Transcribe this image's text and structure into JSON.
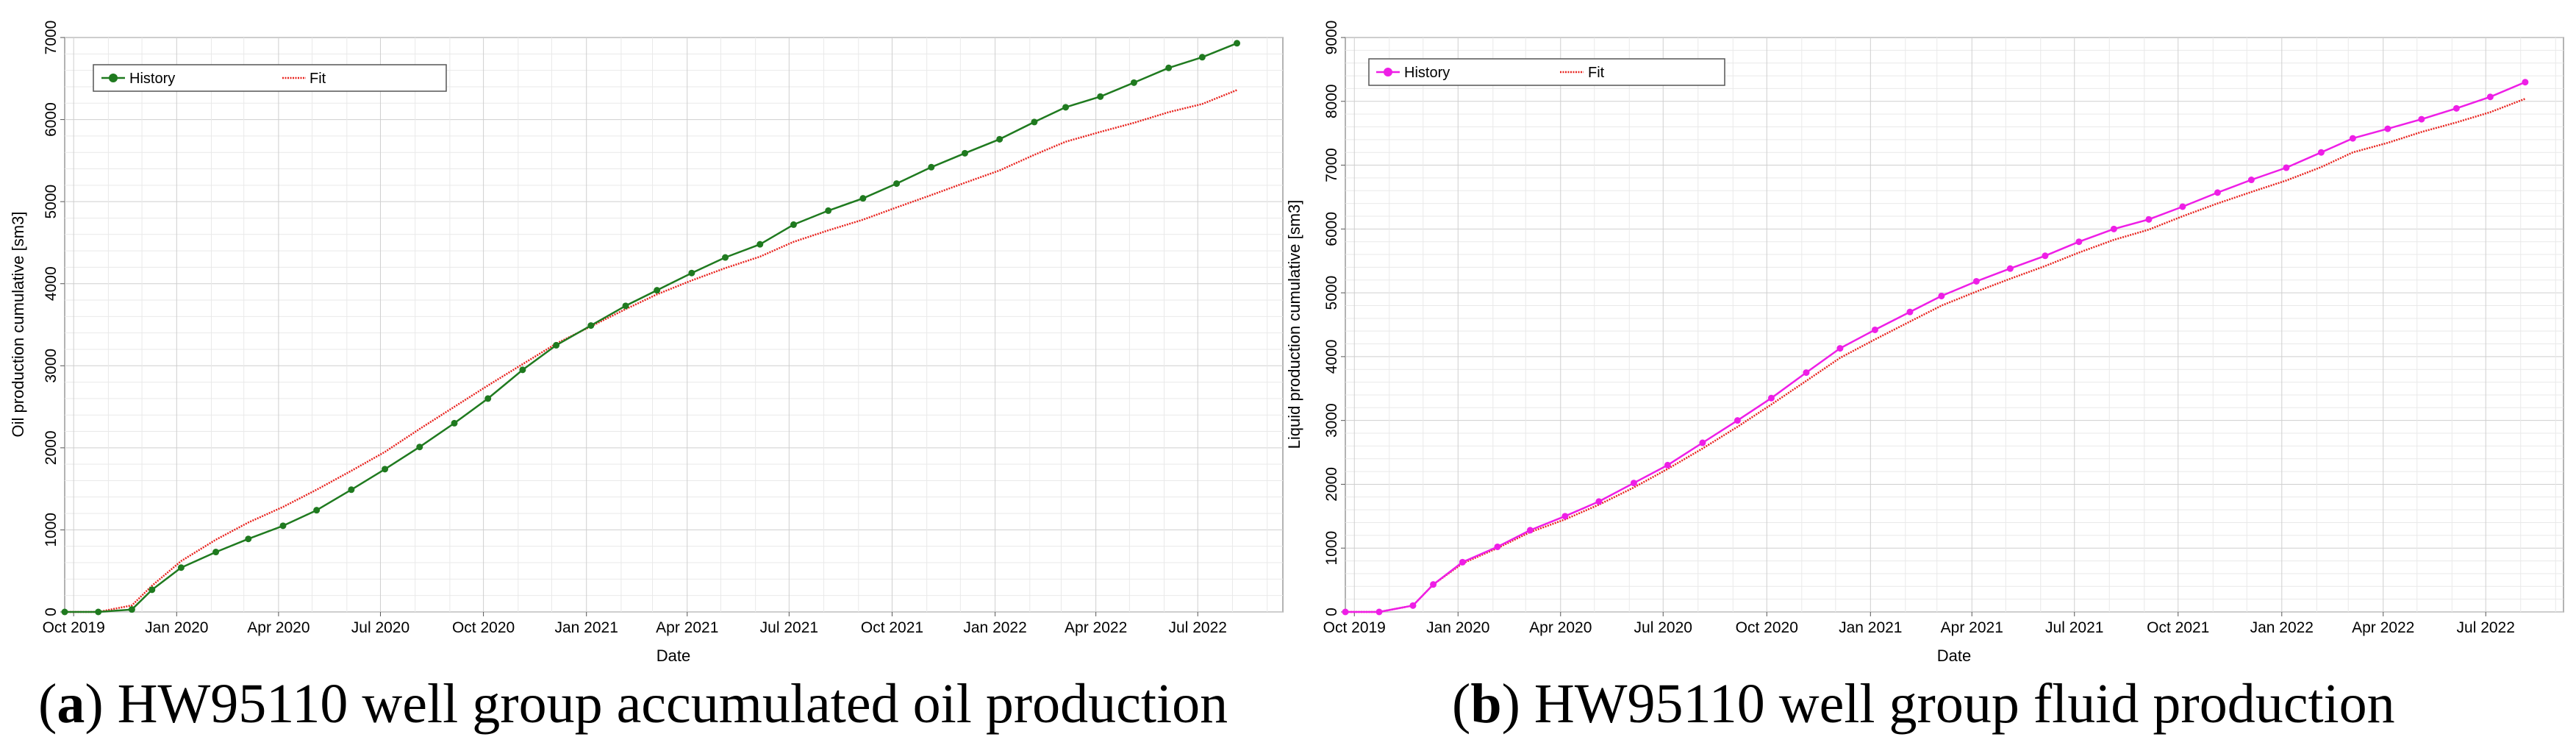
{
  "chart_data": [
    {
      "type": "line",
      "caption_letter": "a",
      "caption_text": "HW95110 well group accumulated oil production",
      "xlabel": "Date",
      "ylabel": "Oil production cumulative [sm3]",
      "xlim": [
        "2019-09-23",
        "2022-09-15"
      ],
      "ylim": [
        0,
        7000
      ],
      "y_ticks": [
        0,
        1000,
        2000,
        3000,
        4000,
        5000,
        6000,
        7000
      ],
      "x_ticks": [
        {
          "date": "2019-10-01",
          "label": "Oct 2019"
        },
        {
          "date": "2020-01-01",
          "label": "Jan 2020"
        },
        {
          "date": "2020-04-01",
          "label": "Apr 2020"
        },
        {
          "date": "2020-07-01",
          "label": "Jul 2020"
        },
        {
          "date": "2020-10-01",
          "label": "Oct 2020"
        },
        {
          "date": "2021-01-01",
          "label": "Jan 2021"
        },
        {
          "date": "2021-04-01",
          "label": "Apr 2021"
        },
        {
          "date": "2021-07-01",
          "label": "Jul 2021"
        },
        {
          "date": "2021-10-01",
          "label": "Oct 2021"
        },
        {
          "date": "2022-01-01",
          "label": "Jan 2022"
        },
        {
          "date": "2022-04-01",
          "label": "Apr 2022"
        },
        {
          "date": "2022-07-01",
          "label": "Jul 2022"
        }
      ],
      "grid": true,
      "legend_position": "top-left",
      "series": [
        {
          "name": "History",
          "color": "#1f7a1f",
          "markers": true,
          "points": [
            [
              "2019-09-23",
              0
            ],
            [
              "2019-10-23",
              0
            ],
            [
              "2019-11-22",
              30
            ],
            [
              "2019-12-10",
              270
            ],
            [
              "2020-01-05",
              540
            ],
            [
              "2020-02-05",
              730
            ],
            [
              "2020-03-05",
              890
            ],
            [
              "2020-04-05",
              1050
            ],
            [
              "2020-05-05",
              1240
            ],
            [
              "2020-06-05",
              1490
            ],
            [
              "2020-07-05",
              1740
            ],
            [
              "2020-08-05",
              2010
            ],
            [
              "2020-09-05",
              2300
            ],
            [
              "2020-10-05",
              2600
            ],
            [
              "2020-11-05",
              2950
            ],
            [
              "2020-12-05",
              3250
            ],
            [
              "2021-01-05",
              3490
            ],
            [
              "2021-02-05",
              3730
            ],
            [
              "2021-03-05",
              3920
            ],
            [
              "2021-04-05",
              4130
            ],
            [
              "2021-05-05",
              4320
            ],
            [
              "2021-06-05",
              4480
            ],
            [
              "2021-07-05",
              4720
            ],
            [
              "2021-08-05",
              4890
            ],
            [
              "2021-09-05",
              5040
            ],
            [
              "2021-10-05",
              5220
            ],
            [
              "2021-11-05",
              5420
            ],
            [
              "2021-12-05",
              5590
            ],
            [
              "2022-01-05",
              5760
            ],
            [
              "2022-02-05",
              5970
            ],
            [
              "2022-03-05",
              6150
            ],
            [
              "2022-04-05",
              6280
            ],
            [
              "2022-05-05",
              6450
            ],
            [
              "2022-06-05",
              6630
            ],
            [
              "2022-07-05",
              6760
            ],
            [
              "2022-08-05",
              6930
            ]
          ]
        },
        {
          "name": "Fit",
          "color": "#e8231e",
          "markers": false,
          "points": [
            [
              "2019-09-23",
              0
            ],
            [
              "2019-10-23",
              0
            ],
            [
              "2019-11-22",
              80
            ],
            [
              "2019-12-10",
              320
            ],
            [
              "2020-01-05",
              620
            ],
            [
              "2020-02-05",
              880
            ],
            [
              "2020-03-05",
              1090
            ],
            [
              "2020-04-05",
              1280
            ],
            [
              "2020-05-05",
              1490
            ],
            [
              "2020-06-05",
              1720
            ],
            [
              "2020-07-05",
              1950
            ],
            [
              "2020-08-05",
              2230
            ],
            [
              "2020-09-05",
              2500
            ],
            [
              "2020-10-05",
              2760
            ],
            [
              "2020-11-05",
              3020
            ],
            [
              "2020-12-05",
              3270
            ],
            [
              "2021-01-05",
              3480
            ],
            [
              "2021-02-05",
              3690
            ],
            [
              "2021-03-05",
              3870
            ],
            [
              "2021-04-05",
              4040
            ],
            [
              "2021-05-05",
              4190
            ],
            [
              "2021-06-05",
              4330
            ],
            [
              "2021-07-05",
              4510
            ],
            [
              "2021-08-05",
              4650
            ],
            [
              "2021-09-05",
              4780
            ],
            [
              "2021-10-05",
              4930
            ],
            [
              "2021-11-05",
              5080
            ],
            [
              "2021-12-05",
              5230
            ],
            [
              "2022-01-05",
              5380
            ],
            [
              "2022-02-05",
              5570
            ],
            [
              "2022-03-05",
              5730
            ],
            [
              "2022-04-05",
              5850
            ],
            [
              "2022-05-05",
              5960
            ],
            [
              "2022-06-05",
              6090
            ],
            [
              "2022-07-05",
              6190
            ],
            [
              "2022-08-05",
              6360
            ]
          ]
        }
      ]
    },
    {
      "type": "line",
      "caption_letter": "b",
      "caption_text": "HW95110 well group fluid production",
      "xlabel": "Date",
      "ylabel": "Liquid production cumulative [sm3]",
      "xlim": [
        "2019-09-23",
        "2022-09-08"
      ],
      "ylim": [
        0,
        9000
      ],
      "y_ticks": [
        0,
        1000,
        2000,
        3000,
        4000,
        5000,
        6000,
        7000,
        8000,
        9000
      ],
      "x_ticks": [
        {
          "date": "2019-10-01",
          "label": "Oct 2019"
        },
        {
          "date": "2020-01-01",
          "label": "Jan 2020"
        },
        {
          "date": "2020-04-01",
          "label": "Apr 2020"
        },
        {
          "date": "2020-07-01",
          "label": "Jul 2020"
        },
        {
          "date": "2020-10-01",
          "label": "Oct 2020"
        },
        {
          "date": "2021-01-01",
          "label": "Jan 2021"
        },
        {
          "date": "2021-04-01",
          "label": "Apr 2021"
        },
        {
          "date": "2021-07-01",
          "label": "Jul 2021"
        },
        {
          "date": "2021-10-01",
          "label": "Oct 2021"
        },
        {
          "date": "2022-01-01",
          "label": "Jan 2022"
        },
        {
          "date": "2022-04-01",
          "label": "Apr 2022"
        },
        {
          "date": "2022-07-01",
          "label": "Jul 2022"
        }
      ],
      "grid": true,
      "legend_position": "top-left",
      "series": [
        {
          "name": "History",
          "color": "#ee1ee6",
          "markers": true,
          "points": [
            [
              "2019-09-23",
              0
            ],
            [
              "2019-10-23",
              0
            ],
            [
              "2019-11-22",
              100
            ],
            [
              "2019-12-10",
              430
            ],
            [
              "2020-01-05",
              780
            ],
            [
              "2020-02-05",
              1020
            ],
            [
              "2020-03-05",
              1280
            ],
            [
              "2020-04-05",
              1500
            ],
            [
              "2020-05-05",
              1730
            ],
            [
              "2020-06-05",
              2020
            ],
            [
              "2020-07-05",
              2300
            ],
            [
              "2020-08-05",
              2650
            ],
            [
              "2020-09-05",
              3000
            ],
            [
              "2020-10-05",
              3350
            ],
            [
              "2020-11-05",
              3750
            ],
            [
              "2020-12-05",
              4130
            ],
            [
              "2021-01-05",
              4420
            ],
            [
              "2021-02-05",
              4700
            ],
            [
              "2021-03-05",
              4950
            ],
            [
              "2021-04-05",
              5180
            ],
            [
              "2021-05-05",
              5380
            ],
            [
              "2021-06-05",
              5580
            ],
            [
              "2021-07-05",
              5800
            ],
            [
              "2021-08-05",
              6000
            ],
            [
              "2021-09-05",
              6150
            ],
            [
              "2021-10-05",
              6350
            ],
            [
              "2021-11-05",
              6570
            ],
            [
              "2021-12-05",
              6770
            ],
            [
              "2022-01-05",
              6960
            ],
            [
              "2022-02-05",
              7200
            ],
            [
              "2022-03-05",
              7420
            ],
            [
              "2022-04-05",
              7570
            ],
            [
              "2022-05-05",
              7720
            ],
            [
              "2022-06-05",
              7890
            ],
            [
              "2022-07-05",
              8070
            ],
            [
              "2022-08-05",
              8300
            ]
          ]
        },
        {
          "name": "Fit",
          "color": "#e8231e",
          "markers": false,
          "points": [
            [
              "2019-09-23",
              0
            ],
            [
              "2019-10-23",
              0
            ],
            [
              "2019-11-22",
              100
            ],
            [
              "2019-12-10",
              430
            ],
            [
              "2020-01-05",
              760
            ],
            [
              "2020-02-05",
              1000
            ],
            [
              "2020-03-05",
              1250
            ],
            [
              "2020-04-05",
              1450
            ],
            [
              "2020-05-05",
              1680
            ],
            [
              "2020-06-05",
              1950
            ],
            [
              "2020-07-05",
              2240
            ],
            [
              "2020-08-05",
              2560
            ],
            [
              "2020-09-05",
              2900
            ],
            [
              "2020-10-05",
              3250
            ],
            [
              "2020-11-05",
              3620
            ],
            [
              "2020-12-05",
              3980
            ],
            [
              "2021-01-05",
              4270
            ],
            [
              "2021-02-05",
              4550
            ],
            [
              "2021-03-05",
              4800
            ],
            [
              "2021-04-05",
              5020
            ],
            [
              "2021-05-05",
              5220
            ],
            [
              "2021-06-05",
              5420
            ],
            [
              "2021-07-05",
              5630
            ],
            [
              "2021-08-05",
              5830
            ],
            [
              "2021-09-05",
              5990
            ],
            [
              "2021-10-05",
              6200
            ],
            [
              "2021-11-05",
              6400
            ],
            [
              "2021-12-05",
              6580
            ],
            [
              "2022-01-05",
              6760
            ],
            [
              "2022-02-05",
              6970
            ],
            [
              "2022-03-05",
              7200
            ],
            [
              "2022-04-05",
              7350
            ],
            [
              "2022-05-05",
              7520
            ],
            [
              "2022-06-05",
              7670
            ],
            [
              "2022-07-05",
              7830
            ],
            [
              "2022-08-05",
              8040
            ]
          ]
        }
      ]
    }
  ]
}
